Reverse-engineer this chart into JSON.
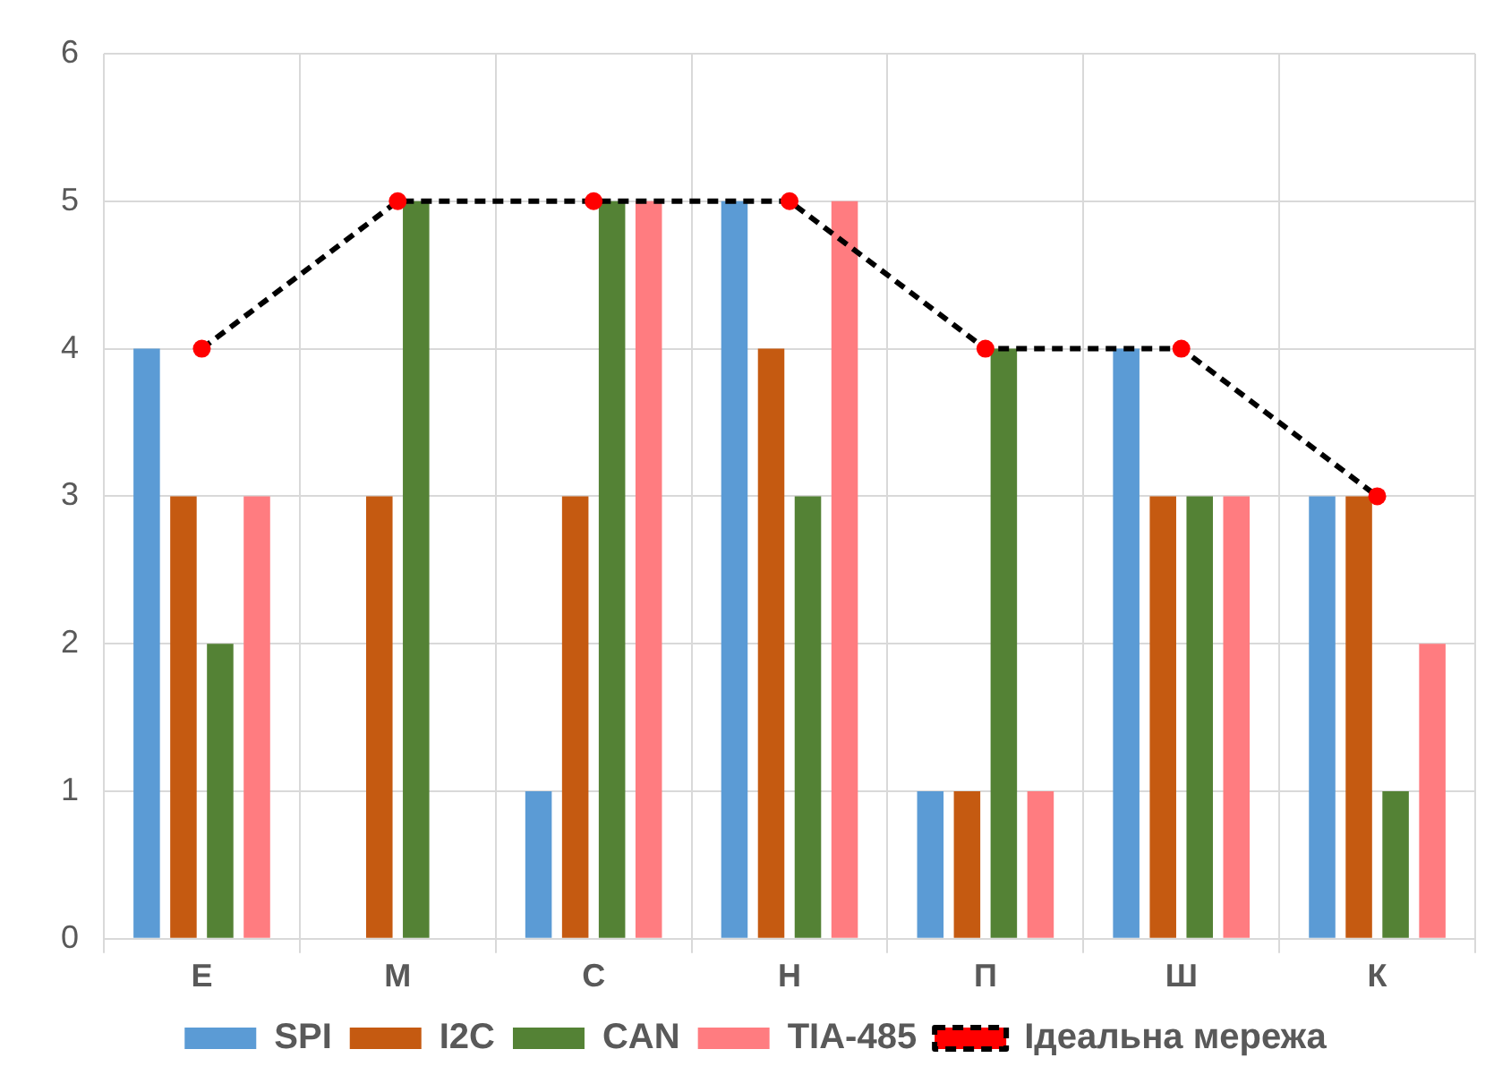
{
  "chart_data": {
    "type": "bar",
    "categories": [
      "Е",
      "М",
      "С",
      "Н",
      "П",
      "Ш",
      "К"
    ],
    "series": [
      {
        "name": "SPI",
        "color": "#5b9bd5",
        "values": [
          4,
          0,
          1,
          5,
          1,
          4,
          3
        ]
      },
      {
        "name": "I2C",
        "color": "#c55a11",
        "values": [
          3,
          3,
          3,
          4,
          1,
          3,
          3
        ]
      },
      {
        "name": "CAN",
        "color": "#548235",
        "values": [
          2,
          5,
          5,
          3,
          4,
          3,
          1
        ]
      },
      {
        "name": "TIA-485",
        "color": "#ff7c80",
        "values": [
          3,
          0,
          5,
          5,
          1,
          3,
          2
        ]
      },
      {
        "name": "Ідеальна мережа",
        "type": "line",
        "color": "#000000",
        "colors": [
          "#ff0000",
          "#ff0000",
          "#ff0000",
          "#ff0000",
          "#ff0000",
          "#ff0000",
          "#ff0000"
        ],
        "marker": "circle",
        "line_style": "dashed",
        "values": [
          4,
          5,
          5,
          5,
          4,
          4,
          3
        ]
      }
    ],
    "ylim": [
      0,
      6
    ],
    "yticks": [
      0,
      1,
      2,
      3,
      4,
      5,
      6
    ],
    "grid": true,
    "legend": "bottom"
  }
}
